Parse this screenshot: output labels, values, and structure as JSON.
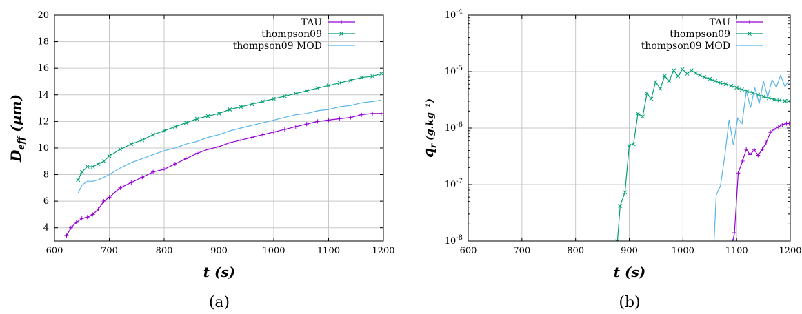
{
  "chart_data": [
    {
      "type": "line",
      "panel_caption": "(a)",
      "xlabel": "t (s)",
      "ylabel": "D_eff (μm)",
      "ylabel_main": "D",
      "ylabel_sub": "eff",
      "ylabel_unit": " (μm)",
      "xlim": [
        600,
        1200
      ],
      "ylim": [
        3,
        20
      ],
      "yscale": "linear",
      "xticks": [
        600,
        700,
        800,
        900,
        1000,
        1100,
        1200
      ],
      "yticks": [
        4,
        6,
        8,
        10,
        12,
        14,
        16,
        18,
        20
      ],
      "grid": true,
      "legend_position": "top-right",
      "series": [
        {
          "name": "TAU",
          "color": "#9400d3",
          "marker": "plus",
          "x": [
            622,
            630,
            640,
            650,
            660,
            670,
            680,
            690,
            700,
            720,
            740,
            760,
            780,
            800,
            820,
            840,
            860,
            880,
            900,
            920,
            940,
            960,
            980,
            1000,
            1020,
            1040,
            1060,
            1080,
            1100,
            1120,
            1140,
            1160,
            1180,
            1196
          ],
          "y": [
            3.4,
            4.0,
            4.4,
            4.7,
            4.8,
            5.0,
            5.4,
            6.0,
            6.3,
            7.0,
            7.4,
            7.8,
            8.2,
            8.4,
            8.8,
            9.2,
            9.6,
            9.9,
            10.1,
            10.4,
            10.6,
            10.8,
            11.0,
            11.2,
            11.4,
            11.6,
            11.8,
            12.0,
            12.1,
            12.2,
            12.3,
            12.5,
            12.6,
            12.6
          ]
        },
        {
          "name": "thompson09",
          "color": "#009e73",
          "marker": "cross",
          "x": [
            643,
            650,
            660,
            670,
            680,
            690,
            700,
            720,
            740,
            760,
            780,
            800,
            820,
            840,
            860,
            880,
            900,
            920,
            940,
            960,
            980,
            1000,
            1020,
            1040,
            1060,
            1080,
            1100,
            1120,
            1140,
            1160,
            1180,
            1196
          ],
          "y": [
            7.6,
            8.2,
            8.6,
            8.6,
            8.8,
            9.0,
            9.4,
            9.9,
            10.3,
            10.6,
            11.0,
            11.3,
            11.6,
            11.9,
            12.2,
            12.4,
            12.6,
            12.9,
            13.1,
            13.3,
            13.5,
            13.7,
            13.9,
            14.1,
            14.3,
            14.5,
            14.7,
            14.9,
            15.1,
            15.3,
            15.4,
            15.6
          ]
        },
        {
          "name": "thompson09 MOD",
          "color": "#56b4e9",
          "marker": "none",
          "x": [
            643,
            650,
            660,
            670,
            680,
            690,
            700,
            720,
            740,
            760,
            780,
            800,
            820,
            840,
            860,
            880,
            900,
            920,
            940,
            960,
            980,
            1000,
            1020,
            1040,
            1060,
            1080,
            1100,
            1120,
            1140,
            1160,
            1180,
            1196
          ],
          "y": [
            6.6,
            7.2,
            7.5,
            7.5,
            7.6,
            7.8,
            8.0,
            8.5,
            8.9,
            9.2,
            9.5,
            9.8,
            10.0,
            10.3,
            10.5,
            10.8,
            11.0,
            11.3,
            11.5,
            11.7,
            11.9,
            12.1,
            12.3,
            12.5,
            12.6,
            12.8,
            12.9,
            13.1,
            13.2,
            13.4,
            13.5,
            13.6
          ]
        }
      ]
    },
    {
      "type": "line",
      "panel_caption": "(b)",
      "xlabel": "t (s)",
      "ylabel": "q_r (g.kg⁻¹)",
      "ylabel_main": "q",
      "ylabel_sub": "r",
      "ylabel_unit": " (g.kg⁻¹)",
      "xlim": [
        600,
        1200
      ],
      "ylim": [
        1e-08,
        0.0001
      ],
      "yscale": "log",
      "xticks": [
        600,
        700,
        800,
        900,
        1000,
        1100,
        1200
      ],
      "yticks": [
        1e-08,
        1e-07,
        1e-06,
        1e-05,
        0.0001
      ],
      "ytick_exponents": [
        "-8",
        "-7",
        "-6",
        "-5",
        "-4"
      ],
      "grid": true,
      "legend_position": "top-right",
      "series": [
        {
          "name": "TAU",
          "color": "#9400d3",
          "marker": "plus",
          "x": [
            1093,
            1096,
            1103,
            1111,
            1118,
            1125,
            1133,
            1140,
            1148,
            1155,
            1163,
            1170,
            1178,
            1185,
            1193,
            1198
          ],
          "y": [
            1e-08,
            1.4e-08,
            1.6e-07,
            2.6e-07,
            4.2e-07,
            3.4e-07,
            4.1e-07,
            3.3e-07,
            4.2e-07,
            5.5e-07,
            8.4e-07,
            9.5e-07,
            1.05e-06,
            1.15e-06,
            1.2e-06,
            1.2e-06
          ]
        },
        {
          "name": "thompson09",
          "color": "#009e73",
          "marker": "cross",
          "x": [
            878,
            883,
            892,
            900,
            908,
            916,
            925,
            933,
            941,
            949,
            958,
            966,
            974,
            983,
            991,
            999,
            1008,
            1016,
            1024,
            1032,
            1040,
            1050,
            1060,
            1070,
            1080,
            1090,
            1100,
            1110,
            1120,
            1130,
            1140,
            1150,
            1160,
            1170,
            1180,
            1190,
            1197
          ],
          "y": [
            1e-08,
            4.2e-08,
            7.3e-08,
            4.9e-07,
            5.2e-07,
            1.8e-06,
            1.6e-06,
            4.1e-06,
            3.3e-06,
            6.5e-06,
            5e-06,
            8.4e-06,
            6.8e-06,
            1.05e-05,
            8.3e-06,
            1.1e-05,
            9.2e-06,
            1.05e-05,
            9.4e-06,
            8.6e-06,
            8e-06,
            7.4e-06,
            6.8e-06,
            6.3e-06,
            6e-06,
            5.6e-06,
            5.2e-06,
            4.8e-06,
            4.5e-06,
            4.2e-06,
            3.9e-06,
            3.6e-06,
            3.4e-06,
            3.2e-06,
            3.1e-06,
            3e-06,
            3e-06
          ]
        },
        {
          "name": "thompson09 MOD",
          "color": "#56b4e9",
          "marker": "none",
          "x": [
            1058,
            1062,
            1070,
            1078,
            1086,
            1094,
            1102,
            1110,
            1118,
            1126,
            1134,
            1142,
            1150,
            1158,
            1166,
            1174,
            1182,
            1190,
            1197
          ],
          "y": [
            1e-08,
            6.5e-08,
            9.5e-08,
            3.2e-07,
            1.4e-06,
            5e-07,
            1.5e-06,
            1.2e-06,
            4.5e-06,
            2.3e-06,
            5.2e-06,
            2.7e-06,
            6.8e-06,
            3.5e-06,
            7.2e-06,
            5.3e-06,
            8.6e-06,
            5.4e-06,
            6.8e-06
          ]
        }
      ]
    }
  ]
}
